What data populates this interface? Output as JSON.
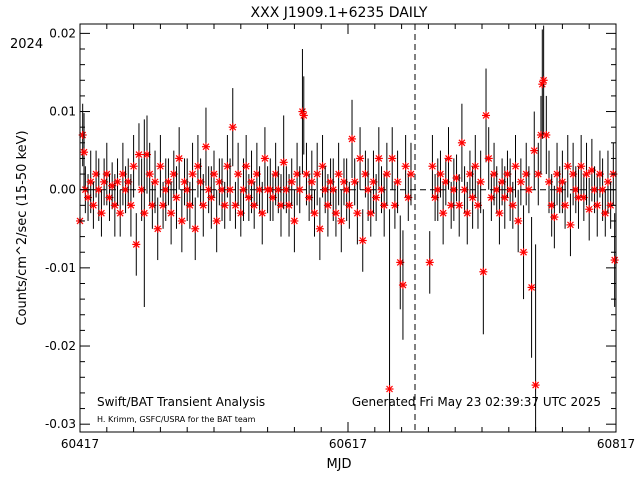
{
  "chart_data": {
    "type": "scatter",
    "title": "XXX J1909.1+6235 DAILY",
    "year_label": "2024",
    "xlabel": "MJD",
    "ylabel": "Counts/cm^2/sec (15-50 keV)",
    "xlim": [
      60417,
      60817
    ],
    "ylim": [
      -0.031,
      0.0212
    ],
    "xticks": [
      60417,
      60617,
      60817
    ],
    "xtick_labels": [
      "60417",
      "60617",
      "60817"
    ],
    "yticks": [
      -0.03,
      -0.02,
      -0.01,
      0.0,
      0.01,
      0.02
    ],
    "ytick_labels": [
      "-0.03",
      "-0.02",
      "-0.01",
      "0.00",
      "0.01",
      "0.02"
    ],
    "vline_mjd": 60667,
    "marker_color": "#ff0000",
    "errorbar_color": "#000000",
    "footer_left": "Swift/BAT Transient Analysis",
    "footer_credit": "H. Krimm, GSFC/USRA for the BAT team",
    "footer_right": "Generated Fri May 23 02:39:37 UTC 2025",
    "series": [
      {
        "values": [
          [
            60417,
            -0.004,
            0.004
          ],
          [
            60419,
            0.007,
            0.004
          ],
          [
            60420,
            0.0048,
            0.005
          ],
          [
            60421,
            0.0,
            0.003
          ],
          [
            60423,
            -0.001,
            0.003
          ],
          [
            60425,
            0.001,
            0.004
          ],
          [
            60427,
            -0.002,
            0.003
          ],
          [
            60429,
            0.002,
            0.003
          ],
          [
            60431,
            0.0,
            0.004
          ],
          [
            60433,
            -0.003,
            0.003
          ],
          [
            60435,
            0.001,
            0.003
          ],
          [
            60437,
            0.002,
            0.004
          ],
          [
            60439,
            -0.001,
            0.003
          ],
          [
            60441,
            0.0005,
            0.003
          ],
          [
            60443,
            -0.002,
            0.004
          ],
          [
            60445,
            0.001,
            0.003
          ],
          [
            60447,
            -0.003,
            0.003
          ],
          [
            60449,
            0.002,
            0.004
          ],
          [
            60451,
            0.0,
            0.003
          ],
          [
            60453,
            0.001,
            0.003
          ],
          [
            60455,
            -0.002,
            0.004
          ],
          [
            60457,
            0.003,
            0.004
          ],
          [
            60459,
            -0.007,
            0.004
          ],
          [
            60461,
            0.0045,
            0.004
          ],
          [
            60463,
            0.0,
            0.004
          ],
          [
            60465,
            -0.003,
            0.012
          ],
          [
            60467,
            0.0045,
            0.005
          ],
          [
            60469,
            0.002,
            0.004
          ],
          [
            60471,
            -0.002,
            0.003
          ],
          [
            60473,
            0.001,
            0.004
          ],
          [
            60475,
            -0.005,
            0.004
          ],
          [
            60477,
            0.003,
            0.004
          ],
          [
            60479,
            -0.002,
            0.003
          ],
          [
            60481,
            0.0,
            0.004
          ],
          [
            60483,
            0.001,
            0.003
          ],
          [
            60485,
            -0.003,
            0.004
          ],
          [
            60487,
            0.002,
            0.003
          ],
          [
            60489,
            -0.001,
            0.004
          ],
          [
            60491,
            0.004,
            0.004
          ],
          [
            60493,
            -0.004,
            0.004
          ],
          [
            60495,
            0.001,
            0.003
          ],
          [
            60497,
            0.0,
            0.004
          ],
          [
            60499,
            -0.002,
            0.003
          ],
          [
            60501,
            0.002,
            0.004
          ],
          [
            60503,
            -0.005,
            0.004
          ],
          [
            60505,
            0.003,
            0.004
          ],
          [
            60507,
            0.001,
            0.003
          ],
          [
            60509,
            -0.002,
            0.004
          ],
          [
            60511,
            0.0055,
            0.005
          ],
          [
            60513,
            0.0,
            0.003
          ],
          [
            60515,
            -0.001,
            0.004
          ],
          [
            60517,
            0.002,
            0.003
          ],
          [
            60519,
            -0.004,
            0.004
          ],
          [
            60521,
            0.001,
            0.003
          ],
          [
            60523,
            0.0,
            0.004
          ],
          [
            60525,
            -0.002,
            0.003
          ],
          [
            60527,
            0.003,
            0.004
          ],
          [
            60529,
            0.0,
            0.004
          ],
          [
            60531,
            0.008,
            0.005
          ],
          [
            60533,
            -0.002,
            0.003
          ],
          [
            60535,
            0.002,
            0.004
          ],
          [
            60537,
            -0.003,
            0.003
          ],
          [
            60539,
            0.0,
            0.004
          ],
          [
            60541,
            0.003,
            0.004
          ],
          [
            60543,
            -0.001,
            0.003
          ],
          [
            60545,
            0.001,
            0.004
          ],
          [
            60547,
            -0.002,
            0.003
          ],
          [
            60549,
            0.002,
            0.004
          ],
          [
            60551,
            0.0,
            0.003
          ],
          [
            60553,
            -0.003,
            0.004
          ],
          [
            60555,
            0.004,
            0.004
          ],
          [
            60557,
            0.0,
            0.003
          ],
          [
            60559,
            0.0,
            0.004
          ],
          [
            60561,
            -0.001,
            0.003
          ],
          [
            60563,
            0.002,
            0.004
          ],
          [
            60565,
            0.0,
            0.003
          ],
          [
            60567,
            -0.002,
            0.004
          ],
          [
            60569,
            0.0035,
            0.006
          ],
          [
            60571,
            0.0,
            0.003
          ],
          [
            60573,
            -0.002,
            0.004
          ],
          [
            60575,
            0.001,
            0.003
          ],
          [
            60577,
            -0.004,
            0.004
          ],
          [
            60579,
            0.002,
            0.004
          ],
          [
            60581,
            0.0,
            0.003
          ],
          [
            60583,
            0.01,
            0.008
          ],
          [
            60584,
            0.0095,
            0.005
          ],
          [
            60586,
            0.002,
            0.004
          ],
          [
            60588,
            -0.001,
            0.003
          ],
          [
            60590,
            0.001,
            0.004
          ],
          [
            60592,
            -0.003,
            0.003
          ],
          [
            60594,
            0.002,
            0.004
          ],
          [
            60596,
            -0.005,
            0.004
          ],
          [
            60598,
            0.003,
            0.004
          ],
          [
            60600,
            0.0,
            0.003
          ],
          [
            60602,
            -0.002,
            0.004
          ],
          [
            60604,
            0.001,
            0.003
          ],
          [
            60606,
            0.0,
            0.004
          ],
          [
            60608,
            -0.003,
            0.003
          ],
          [
            60610,
            0.002,
            0.004
          ],
          [
            60612,
            -0.004,
            0.004
          ],
          [
            60614,
            0.001,
            0.003
          ],
          [
            60616,
            0.0,
            0.004
          ],
          [
            60618,
            -0.002,
            0.003
          ],
          [
            60620,
            0.0065,
            0.005
          ],
          [
            60622,
            0.001,
            0.003
          ],
          [
            60624,
            -0.003,
            0.004
          ],
          [
            60626,
            0.004,
            0.004
          ],
          [
            60628,
            -0.0065,
            0.004
          ],
          [
            60630,
            0.002,
            0.003
          ],
          [
            60632,
            0.0,
            0.004
          ],
          [
            60634,
            -0.003,
            0.003
          ],
          [
            60636,
            0.001,
            0.004
          ],
          [
            60638,
            -0.001,
            0.003
          ],
          [
            60640,
            0.004,
            0.004
          ],
          [
            60642,
            0.0,
            0.003
          ],
          [
            60644,
            -0.002,
            0.004
          ],
          [
            60646,
            0.002,
            0.004
          ],
          [
            60648,
            -0.0255,
            0.023
          ],
          [
            60650,
            0.004,
            0.004
          ],
          [
            60652,
            -0.002,
            0.003
          ],
          [
            60654,
            0.001,
            0.004
          ],
          [
            60656,
            -0.0093,
            0.006
          ],
          [
            60658,
            -0.0122,
            0.007
          ],
          [
            60660,
            0.003,
            0.004
          ],
          [
            60662,
            -0.001,
            0.003
          ],
          [
            60664,
            0.002,
            0.004
          ],
          [
            60678,
            -0.0093,
            0.004
          ],
          [
            60680,
            0.003,
            0.004
          ],
          [
            60682,
            -0.001,
            0.003
          ],
          [
            60684,
            0.0,
            0.004
          ],
          [
            60686,
            0.002,
            0.003
          ],
          [
            60688,
            -0.003,
            0.004
          ],
          [
            60690,
            0.001,
            0.003
          ],
          [
            60692,
            0.004,
            0.004
          ],
          [
            60694,
            -0.002,
            0.003
          ],
          [
            60696,
            0.0,
            0.004
          ],
          [
            60698,
            0.0015,
            0.003
          ],
          [
            60700,
            -0.002,
            0.004
          ],
          [
            60702,
            0.006,
            0.005
          ],
          [
            60704,
            0.0,
            0.003
          ],
          [
            60706,
            -0.003,
            0.004
          ],
          [
            60708,
            0.002,
            0.003
          ],
          [
            60710,
            -0.001,
            0.004
          ],
          [
            60712,
            0.003,
            0.004
          ],
          [
            60714,
            -0.002,
            0.003
          ],
          [
            60716,
            0.001,
            0.004
          ],
          [
            60718,
            -0.0105,
            0.008
          ],
          [
            60720,
            0.0095,
            0.006
          ],
          [
            60722,
            0.004,
            0.004
          ],
          [
            60724,
            -0.001,
            0.003
          ],
          [
            60726,
            0.002,
            0.004
          ],
          [
            60728,
            0.0,
            0.003
          ],
          [
            60730,
            -0.003,
            0.004
          ],
          [
            60732,
            0.001,
            0.003
          ],
          [
            60734,
            -0.001,
            0.004
          ],
          [
            60736,
            0.002,
            0.003
          ],
          [
            60738,
            0.0,
            0.004
          ],
          [
            60740,
            -0.002,
            0.003
          ],
          [
            60742,
            0.003,
            0.004
          ],
          [
            60744,
            -0.004,
            0.004
          ],
          [
            60746,
            0.001,
            0.003
          ],
          [
            60748,
            -0.008,
            0.006
          ],
          [
            60750,
            0.002,
            0.004
          ],
          [
            60752,
            0.0,
            0.003
          ],
          [
            60754,
            -0.0125,
            0.009
          ],
          [
            60756,
            0.005,
            0.005
          ],
          [
            60757,
            -0.025,
            0.018
          ],
          [
            60759,
            0.002,
            0.004
          ],
          [
            60761,
            0.007,
            0.005
          ],
          [
            60762,
            0.0135,
            0.007
          ],
          [
            60763,
            0.014,
            0.007
          ],
          [
            60765,
            0.007,
            0.005
          ],
          [
            60767,
            0.001,
            0.004
          ],
          [
            60769,
            -0.002,
            0.004
          ],
          [
            60771,
            -0.0035,
            0.004
          ],
          [
            60773,
            0.002,
            0.004
          ],
          [
            60775,
            0.0,
            0.003
          ],
          [
            60777,
            0.001,
            0.004
          ],
          [
            60779,
            -0.002,
            0.003
          ],
          [
            60781,
            0.003,
            0.004
          ],
          [
            60783,
            -0.0045,
            0.004
          ],
          [
            60785,
            0.002,
            0.004
          ],
          [
            60787,
            0.0,
            0.003
          ],
          [
            60789,
            -0.001,
            0.004
          ],
          [
            60791,
            0.003,
            0.004
          ],
          [
            60793,
            -0.001,
            0.003
          ],
          [
            60795,
            0.002,
            0.004
          ],
          [
            60797,
            -0.0025,
            0.004
          ],
          [
            60799,
            0.0025,
            0.004
          ],
          [
            60801,
            0.0,
            0.003
          ],
          [
            60803,
            -0.002,
            0.004
          ],
          [
            60805,
            0.002,
            0.003
          ],
          [
            60807,
            0.0,
            0.004
          ],
          [
            60809,
            -0.003,
            0.003
          ],
          [
            60811,
            0.001,
            0.004
          ],
          [
            60813,
            -0.002,
            0.003
          ],
          [
            60815,
            0.002,
            0.004
          ],
          [
            60816,
            -0.009,
            0.006
          ]
        ]
      }
    ]
  }
}
